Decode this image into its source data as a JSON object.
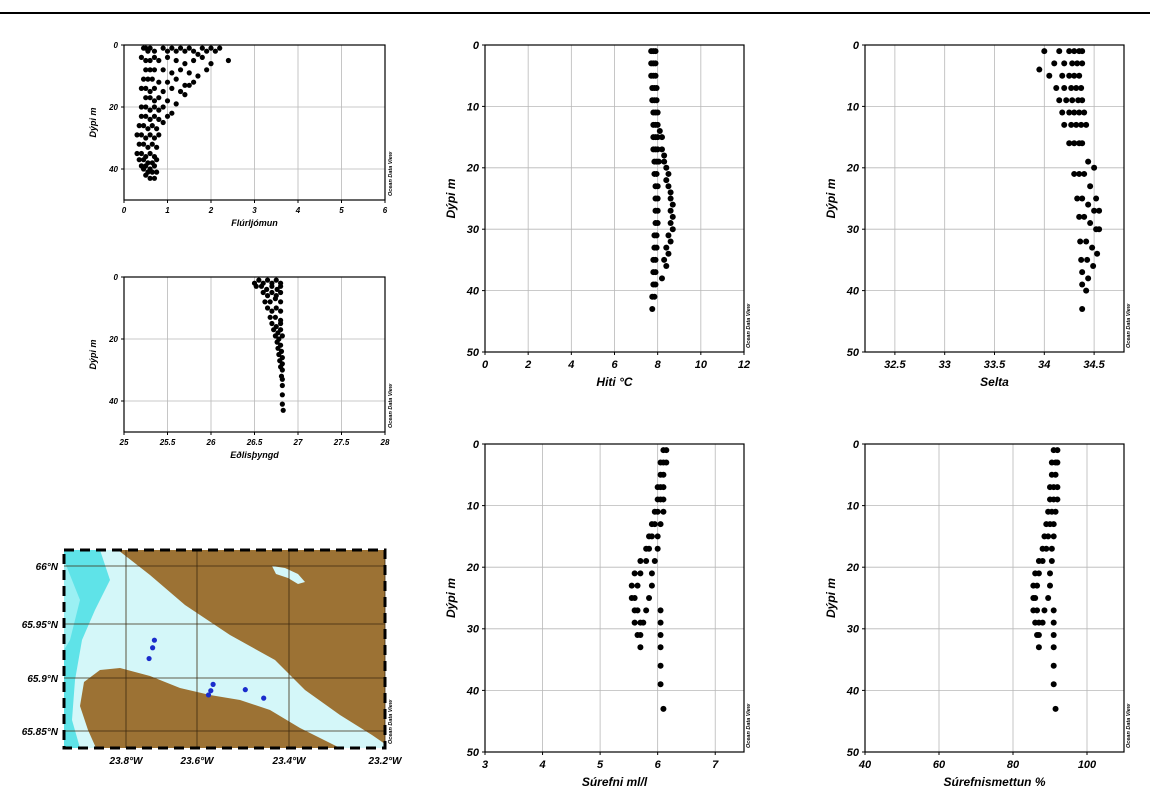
{
  "watermark": "Ocean Data View",
  "chart_data": [
    {
      "type": "scatter",
      "ylabel": "Dýpi m",
      "xlabel": "Flúrljómun",
      "xlim": [
        0,
        6
      ],
      "ylim": [
        0,
        50
      ],
      "xticks": [
        0,
        1,
        2,
        3,
        4,
        5,
        6
      ],
      "yticks": [
        0,
        20,
        40
      ],
      "grid": true,
      "series": [
        {
          "x": [
            0.45,
            0.5,
            0.55,
            0.6,
            0.7,
            0.9,
            1.0,
            1.1,
            1.2,
            1.3,
            1.4,
            1.5,
            1.6,
            1.7,
            1.8,
            1.9,
            2.0,
            2.1,
            2.2,
            2.4,
            0.4,
            0.5,
            0.6,
            0.7,
            0.8,
            1.0,
            1.2,
            1.4,
            1.6,
            1.8,
            2.0,
            0.5,
            0.6,
            0.7,
            0.9,
            1.1,
            1.3,
            1.5,
            1.7,
            1.9,
            0.45,
            0.55,
            0.65,
            0.8,
            1.0,
            1.2,
            1.4,
            1.6,
            0.4,
            0.5,
            0.6,
            0.7,
            0.9,
            1.1,
            1.3,
            1.5,
            0.5,
            0.6,
            0.7,
            0.8,
            1.0,
            1.2,
            1.4,
            0.4,
            0.5,
            0.6,
            0.7,
            0.8,
            0.9,
            1.1,
            0.4,
            0.5,
            0.6,
            0.7,
            0.8,
            1.0,
            0.35,
            0.45,
            0.55,
            0.65,
            0.75,
            0.9,
            0.3,
            0.4,
            0.5,
            0.6,
            0.7,
            0.8,
            0.35,
            0.45,
            0.55,
            0.65,
            0.75,
            0.3,
            0.4,
            0.5,
            0.6,
            0.7,
            0.35,
            0.45,
            0.55,
            0.65,
            0.75,
            0.4,
            0.5,
            0.6,
            0.7,
            0.45,
            0.55,
            0.65,
            0.75,
            0.5,
            0.6,
            0.7
          ],
          "y": [
            1,
            1,
            2,
            1,
            2,
            1,
            2,
            1,
            2,
            1,
            2,
            1,
            2,
            3,
            1,
            2,
            1,
            2,
            1,
            5,
            4,
            5,
            5,
            4,
            5,
            4,
            5,
            6,
            5,
            4,
            6,
            8,
            8,
            8,
            8,
            9,
            8,
            9,
            10,
            8,
            11,
            11,
            11,
            12,
            12,
            11,
            13,
            12,
            14,
            14,
            15,
            14,
            15,
            14,
            15,
            13,
            17,
            17,
            18,
            17,
            18,
            19,
            16,
            20,
            20,
            21,
            20,
            21,
            20,
            22,
            23,
            23,
            24,
            23,
            24,
            23,
            26,
            26,
            27,
            26,
            27,
            25,
            29,
            29,
            30,
            29,
            30,
            29,
            32,
            32,
            33,
            32,
            33,
            35,
            35,
            36,
            35,
            36,
            37,
            37,
            38,
            38,
            37,
            39,
            39,
            40,
            39,
            40,
            41,
            41,
            41,
            42,
            43,
            43
          ]
        }
      ]
    },
    {
      "type": "scatter",
      "ylabel": "Dýpi m",
      "xlabel": "Eðlisþyngd",
      "xlim": [
        25,
        28
      ],
      "ylim": [
        0,
        50
      ],
      "xticks": [
        25,
        25.5,
        26,
        26.5,
        27,
        27.5,
        28
      ],
      "yticks": [
        0,
        20,
        40
      ],
      "grid": true,
      "series": [
        {
          "x": [
            26.5,
            26.55,
            26.6,
            26.65,
            26.7,
            26.75,
            26.8,
            26.52,
            26.58,
            26.64,
            26.7,
            26.76,
            26.8,
            26.6,
            26.65,
            26.7,
            26.75,
            26.8,
            26.62,
            26.68,
            26.74,
            26.8,
            26.65,
            26.7,
            26.75,
            26.8,
            26.68,
            26.74,
            26.8,
            26.7,
            26.75,
            26.8,
            26.72,
            26.77,
            26.8,
            26.74,
            26.78,
            26.82,
            26.76,
            26.8,
            26.77,
            26.81,
            26.78,
            26.82,
            26.79,
            26.82,
            26.8,
            26.82,
            26.81,
            26.82,
            26.82,
            26.82,
            26.82,
            26.83
          ],
          "y": [
            2,
            1,
            2,
            1,
            2,
            1,
            2,
            3,
            3,
            4,
            3,
            4,
            3,
            5,
            6,
            5,
            6,
            5,
            8,
            8,
            7,
            8,
            10,
            11,
            10,
            11,
            13,
            13,
            14,
            15,
            16,
            15,
            17,
            18,
            17,
            19,
            20,
            19,
            21,
            22,
            23,
            24,
            25,
            26,
            27,
            28,
            29,
            30,
            32,
            33,
            35,
            38,
            41,
            43
          ]
        }
      ]
    },
    {
      "type": "scatter",
      "ylabel": "Dýpi m",
      "xlabel": "Hiti °C",
      "xlim": [
        0,
        12
      ],
      "ylim": [
        0,
        50
      ],
      "xticks": [
        0,
        2,
        4,
        6,
        8,
        10,
        12
      ],
      "yticks": [
        0,
        10,
        20,
        30,
        40,
        50
      ],
      "grid": true,
      "series": [
        {
          "x": [
            7.7,
            7.8,
            7.9,
            7.7,
            7.8,
            7.9,
            7.7,
            7.8,
            7.9,
            7.75,
            7.85,
            7.95,
            7.75,
            7.85,
            7.95,
            7.8,
            7.9,
            8.0,
            7.8,
            7.9,
            8.0,
            7.8,
            7.9,
            8.0,
            8.1,
            8.2,
            7.8,
            7.9,
            8.0,
            8.2,
            8.3,
            7.85,
            7.95,
            8.05,
            8.3,
            8.4,
            7.85,
            7.95,
            8.4,
            8.5,
            7.9,
            8.0,
            8.5,
            8.6,
            7.9,
            8.0,
            8.6,
            8.7,
            7.9,
            8.0,
            8.6,
            8.7,
            7.9,
            8.0,
            8.6,
            8.7,
            7.85,
            7.95,
            8.5,
            8.6,
            7.85,
            7.95,
            8.4,
            8.5,
            7.8,
            7.9,
            8.3,
            8.4,
            7.8,
            7.9,
            8.2,
            7.8,
            7.9,
            7.75,
            7.85,
            7.75
          ],
          "y": [
            1,
            1,
            1,
            3,
            3,
            3,
            5,
            5,
            5,
            7,
            7,
            7,
            9,
            9,
            9,
            11,
            11,
            11,
            13,
            13,
            13,
            15,
            15,
            15,
            14,
            15,
            17,
            17,
            17,
            17,
            18,
            19,
            19,
            19,
            19,
            20,
            21,
            21,
            22,
            21,
            23,
            23,
            23,
            24,
            25,
            25,
            25,
            26,
            27,
            27,
            27,
            28,
            29,
            29,
            29,
            30,
            31,
            31,
            31,
            32,
            33,
            33,
            33,
            34,
            35,
            35,
            35,
            36,
            37,
            37,
            38,
            39,
            39,
            41,
            41,
            43
          ]
        }
      ]
    },
    {
      "type": "scatter",
      "ylabel": "Dýpi m",
      "xlabel": "Selta",
      "xlim": [
        32.2,
        34.8
      ],
      "ylim": [
        0,
        50
      ],
      "xticks": [
        32.5,
        33,
        33.5,
        34,
        34.5
      ],
      "yticks": [
        0,
        10,
        20,
        30,
        40,
        50
      ],
      "grid": true,
      "series": [
        {
          "x": [
            34.0,
            34.15,
            34.25,
            34.3,
            34.35,
            34.38,
            33.95,
            34.1,
            34.2,
            34.28,
            34.33,
            34.38,
            34.05,
            34.18,
            34.25,
            34.3,
            34.35,
            34.12,
            34.2,
            34.27,
            34.32,
            34.37,
            34.15,
            34.22,
            34.28,
            34.34,
            34.38,
            34.18,
            34.25,
            34.3,
            34.35,
            34.4,
            34.2,
            34.27,
            34.32,
            34.37,
            34.42,
            34.25,
            34.3,
            34.35,
            34.38,
            34.44,
            34.5,
            34.3,
            34.35,
            34.4,
            34.46,
            34.52,
            34.33,
            34.38,
            34.44,
            34.5,
            34.55,
            34.35,
            34.4,
            34.46,
            34.52,
            34.55,
            34.36,
            34.42,
            34.48,
            34.53,
            34.37,
            34.43,
            34.49,
            34.38,
            34.44,
            34.38,
            34.42,
            34.38
          ],
          "y": [
            1,
            1,
            1,
            1,
            1,
            1,
            4,
            3,
            3,
            3,
            3,
            3,
            5,
            5,
            5,
            5,
            5,
            7,
            7,
            7,
            7,
            7,
            9,
            9,
            9,
            9,
            9,
            11,
            11,
            11,
            11,
            11,
            13,
            13,
            13,
            13,
            13,
            16,
            16,
            16,
            16,
            19,
            20,
            21,
            21,
            21,
            23,
            25,
            25,
            25,
            26,
            27,
            27,
            28,
            28,
            29,
            30,
            30,
            32,
            32,
            33,
            34,
            35,
            35,
            36,
            37,
            38,
            39,
            40,
            43
          ]
        }
      ]
    },
    {
      "type": "scatter",
      "ylabel": "Dýpi m",
      "xlabel": "Súrefni ml/l",
      "xlim": [
        3,
        7.5
      ],
      "ylim": [
        0,
        50
      ],
      "xticks": [
        3,
        4,
        5,
        6,
        7
      ],
      "yticks": [
        0,
        10,
        20,
        30,
        40,
        50
      ],
      "grid": true,
      "series": [
        {
          "x": [
            6.1,
            6.15,
            6.05,
            6.1,
            6.15,
            6.05,
            6.1,
            6.0,
            6.05,
            6.1,
            6.0,
            6.05,
            6.1,
            5.95,
            6.0,
            6.1,
            5.9,
            5.95,
            6.05,
            5.85,
            5.9,
            6.0,
            5.8,
            5.85,
            6.0,
            5.7,
            5.8,
            5.95,
            5.6,
            5.7,
            5.9,
            5.55,
            5.65,
            5.9,
            5.55,
            5.6,
            5.85,
            5.6,
            5.65,
            5.8,
            6.05,
            5.6,
            5.7,
            5.75,
            6.05,
            5.65,
            5.7,
            6.05,
            5.7,
            6.05,
            6.05,
            6.05,
            6.1
          ],
          "y": [
            1,
            1,
            3,
            3,
            3,
            5,
            5,
            7,
            7,
            7,
            9,
            9,
            9,
            11,
            11,
            11,
            13,
            13,
            13,
            15,
            15,
            15,
            17,
            17,
            17,
            19,
            19,
            19,
            21,
            21,
            21,
            23,
            23,
            23,
            25,
            25,
            25,
            27,
            27,
            27,
            27,
            29,
            29,
            29,
            29,
            31,
            31,
            31,
            33,
            33,
            36,
            39,
            43
          ]
        }
      ]
    },
    {
      "type": "scatter",
      "ylabel": "Dýpi m",
      "xlabel": "Súrefnismettun %",
      "xlim": [
        40,
        110
      ],
      "ylim": [
        0,
        50
      ],
      "xticks": [
        40,
        60,
        80,
        100
      ],
      "yticks": [
        0,
        10,
        20,
        30,
        40,
        50
      ],
      "grid": true,
      "series": [
        {
          "x": [
            91,
            92,
            90.5,
            91.5,
            92,
            90.5,
            91.5,
            90,
            91,
            92,
            90,
            91,
            92,
            89.5,
            90.5,
            91.5,
            89,
            90,
            91,
            88.5,
            89.5,
            91,
            88,
            89,
            90.5,
            87,
            88,
            90.5,
            86,
            87,
            90,
            85.5,
            86.5,
            90,
            85.5,
            86,
            89.5,
            85.5,
            86.5,
            88.5,
            91,
            86,
            87,
            88,
            91,
            86.5,
            87,
            91,
            87,
            91,
            91,
            91,
            91.5
          ],
          "y": [
            1,
            1,
            3,
            3,
            3,
            5,
            5,
            7,
            7,
            7,
            9,
            9,
            9,
            11,
            11,
            11,
            13,
            13,
            13,
            15,
            15,
            15,
            17,
            17,
            17,
            19,
            19,
            19,
            21,
            21,
            21,
            23,
            23,
            23,
            25,
            25,
            25,
            27,
            27,
            27,
            27,
            29,
            29,
            29,
            29,
            31,
            31,
            31,
            33,
            33,
            36,
            39,
            43
          ]
        }
      ]
    }
  ],
  "map": {
    "type": "map",
    "lat_ticks": [
      "66°N",
      "65.95°N",
      "65.9°N",
      "65.85°N"
    ],
    "lon_ticks": [
      "23.8°W",
      "23.6°W",
      "23.4°W",
      "23.2°W"
    ],
    "land_color": "#9c7234",
    "water_color": "#d4f7f9",
    "deep_water_color": "#5fe3e8",
    "station_color": "#1a2ccc",
    "stations": [
      {
        "lon": -23.72,
        "lat": 65.935
      },
      {
        "lon": -23.725,
        "lat": 65.928
      },
      {
        "lon": -23.735,
        "lat": 65.918
      },
      {
        "lon": -23.565,
        "lat": 65.894
      },
      {
        "lon": -23.57,
        "lat": 65.888
      },
      {
        "lon": -23.575,
        "lat": 65.884
      },
      {
        "lon": -23.495,
        "lat": 65.889
      },
      {
        "lon": -23.455,
        "lat": 65.881
      }
    ]
  }
}
